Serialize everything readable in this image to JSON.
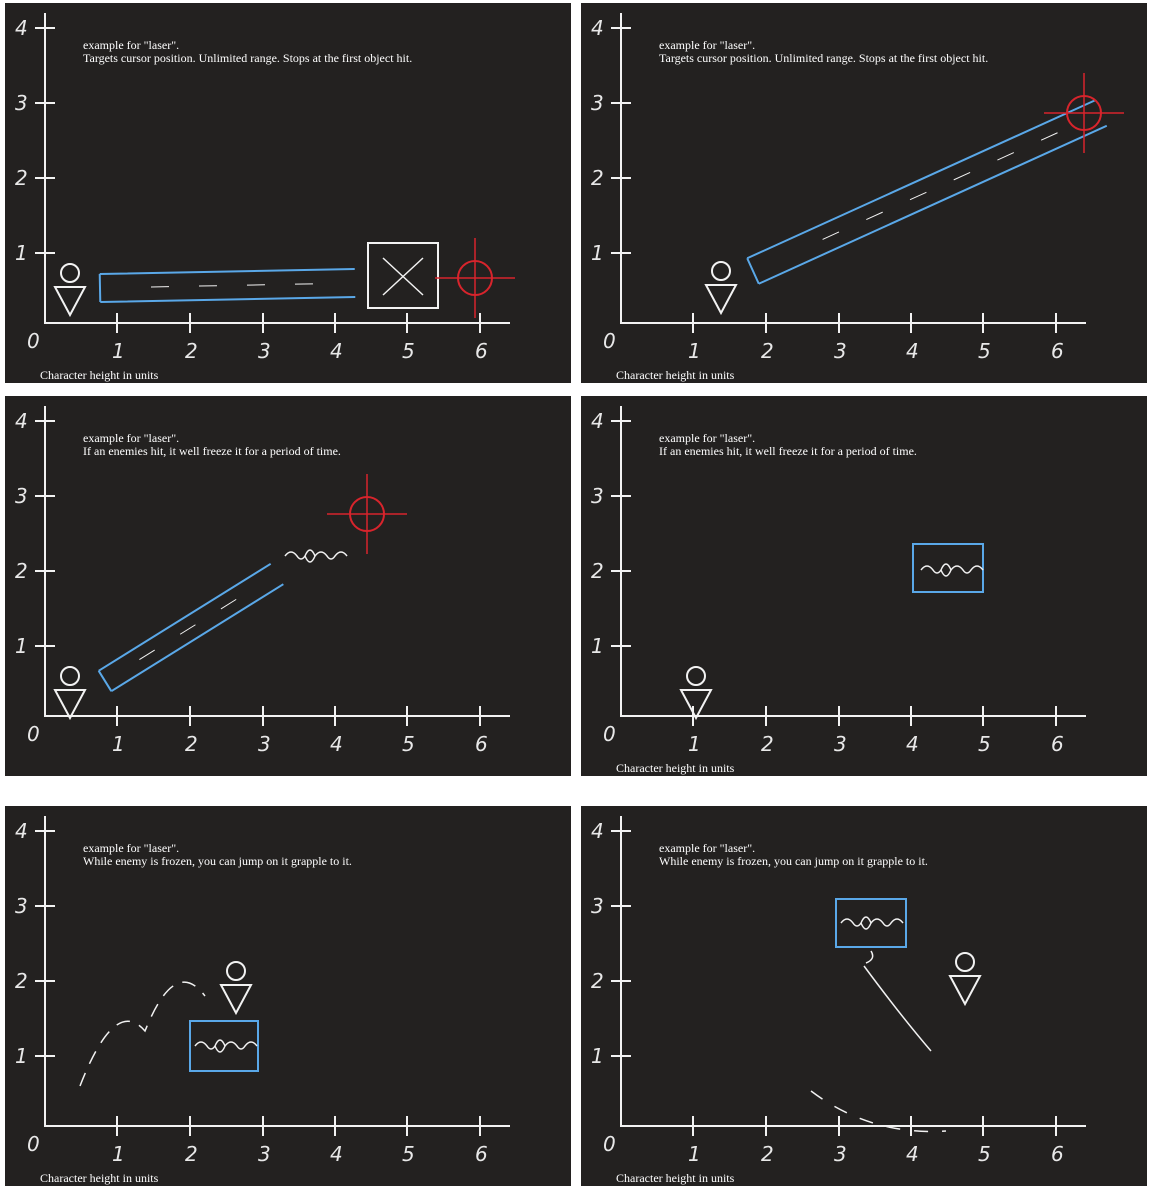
{
  "panels": [
    {
      "caption": [
        "example for \"laser\".",
        "Targets cursor position. Unlimited range. Stops at the first object hit."
      ],
      "axis": {
        "origin": "0",
        "x_ticks": [
          "1",
          "2",
          "3",
          "4",
          "5",
          "6"
        ],
        "y_ticks": [
          "1",
          "2",
          "3",
          "4"
        ]
      },
      "x_axis_label": "Character height in units"
    },
    {
      "caption": [
        "example for \"laser\".",
        "Targets cursor position. Unlimited range. Stops at the first object hit."
      ],
      "axis": {
        "origin": "0",
        "x_ticks": [
          "1",
          "2",
          "3",
          "4",
          "5",
          "6"
        ],
        "y_ticks": [
          "1",
          "2",
          "3",
          "4"
        ]
      },
      "x_axis_label": "Character height in units"
    },
    {
      "caption": [
        "example for \"laser\".",
        "If an enemies hit, it well freeze it for a period of time."
      ],
      "axis": {
        "origin": "0",
        "x_ticks": [
          "1",
          "2",
          "3",
          "4",
          "5",
          "6"
        ],
        "y_ticks": [
          "1",
          "2",
          "3",
          "4"
        ]
      }
    },
    {
      "caption": [
        "example for \"laser\".",
        "If an enemies hit, it well freeze it for a period of time."
      ],
      "axis": {
        "origin": "0",
        "x_ticks": [
          "1",
          "2",
          "3",
          "4",
          "5",
          "6"
        ],
        "y_ticks": [
          "1",
          "2",
          "3",
          "4"
        ]
      },
      "x_axis_label": "Character height in units"
    },
    {
      "caption": [
        "example for \"laser\".",
        "While enemy is frozen, you can jump on it grapple to it."
      ],
      "axis": {
        "origin": "0",
        "x_ticks": [
          "1",
          "2",
          "3",
          "4",
          "5",
          "6"
        ],
        "y_ticks": [
          "1",
          "2",
          "3",
          "4"
        ]
      },
      "x_axis_label": "Character height in units"
    },
    {
      "caption": [
        "example for \"laser\".",
        "While enemy is frozen, you can jump on it grapple to it."
      ],
      "axis": {
        "origin": "0",
        "x_ticks": [
          "1",
          "2",
          "3",
          "4",
          "5",
          "6"
        ],
        "y_ticks": [
          "1",
          "2",
          "3",
          "4"
        ]
      },
      "x_axis_label": "Character height in units"
    }
  ]
}
